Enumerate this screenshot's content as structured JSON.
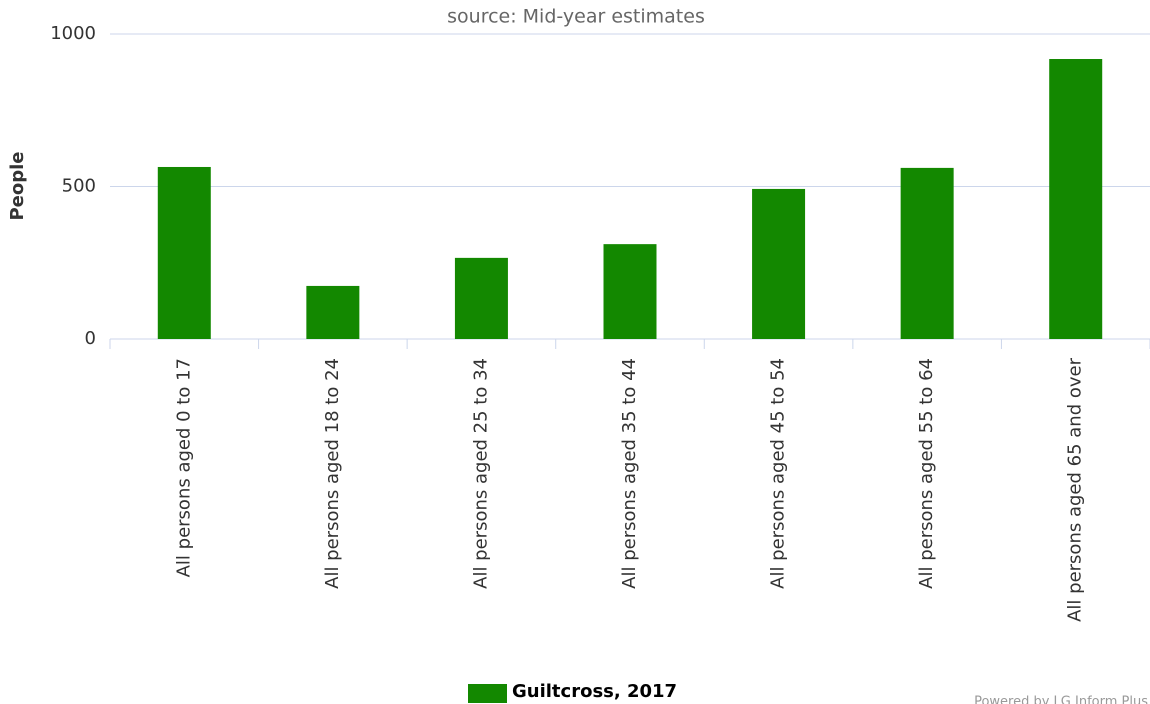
{
  "chart_data": {
    "type": "bar",
    "subtitle": "source: Mid-year estimates",
    "y_label": "People",
    "categories": [
      "All persons aged 0 to 17",
      "All persons aged 18 to 24",
      "All persons aged 25 to 34",
      "All persons aged 35 to 44",
      "All persons aged 45 to 54",
      "All persons aged 55 to 64",
      "All persons aged 65 and over"
    ],
    "series": [
      {
        "name": "Guiltcross, 2017",
        "color": "#138800",
        "values": [
          564,
          174,
          266,
          311,
          492,
          561,
          918
        ]
      }
    ],
    "ylim": [
      0,
      1000
    ],
    "yticks": [
      0,
      500,
      1000
    ],
    "grid": true,
    "legend": "bottom",
    "credit": "Powered by LG Inform Plus"
  }
}
